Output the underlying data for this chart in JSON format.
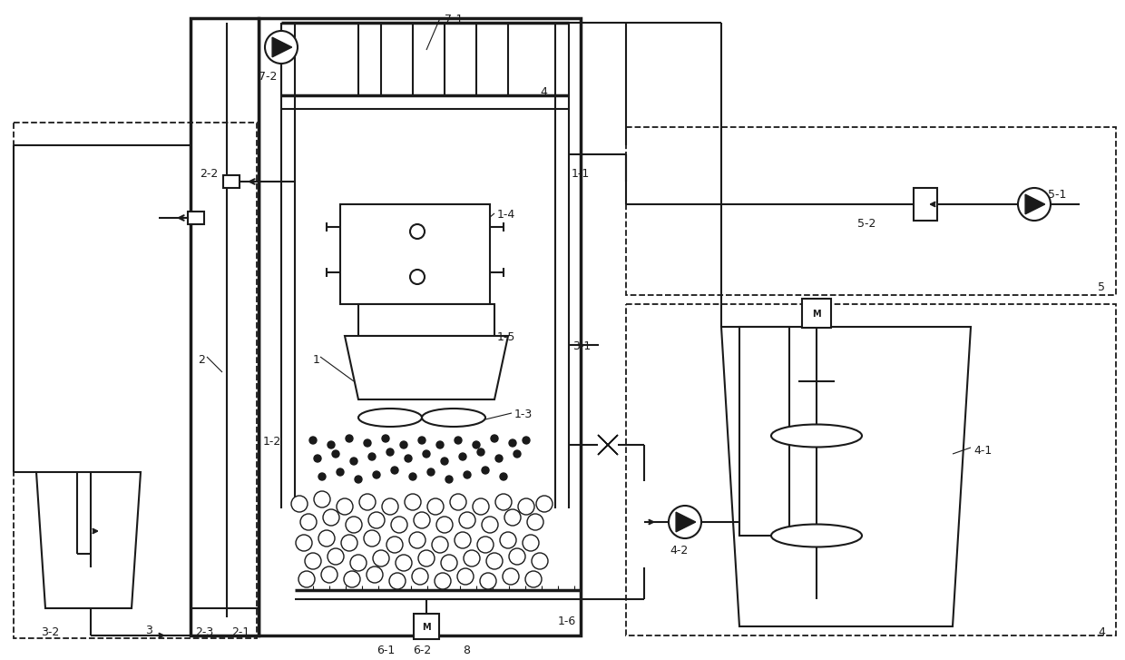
{
  "bg_color": "#ffffff",
  "lc": "#1a1a1a",
  "lw": 1.5,
  "tlw": 2.5,
  "dlw": 1.3
}
